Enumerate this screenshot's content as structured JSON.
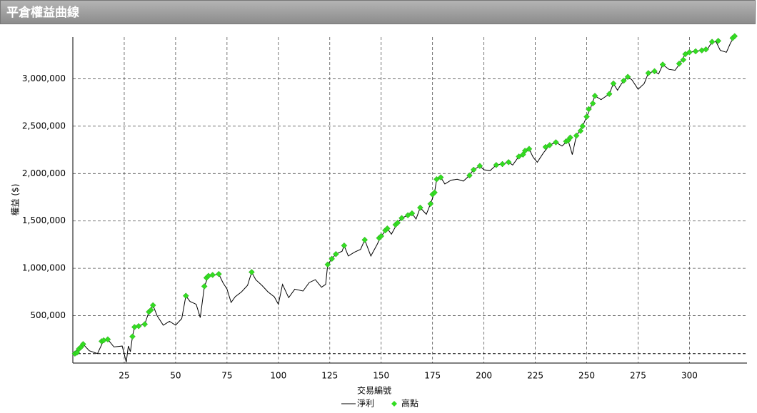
{
  "chart_data": {
    "type": "line",
    "title": "平倉權益曲線",
    "x_label": "交易編號",
    "y_label": "權益 ($)",
    "xlim": [
      0,
      328
    ],
    "xticks": [
      25,
      50,
      75,
      100,
      125,
      150,
      175,
      200,
      225,
      250,
      275,
      300
    ],
    "ylim": [
      0,
      3440000
    ],
    "yticks": [
      {
        "value": 500000,
        "label": "500,000"
      },
      {
        "value": 1000000,
        "label": "1,000,000"
      },
      {
        "value": 1500000,
        "label": "1,500,000"
      },
      {
        "value": 2000000,
        "label": "2,000,000"
      },
      {
        "value": 2500000,
        "label": "2,500,000"
      },
      {
        "value": 3000000,
        "label": "3,000,000"
      }
    ],
    "grid": true,
    "reference_line": 100000,
    "series": [
      {
        "name": "淨利",
        "color": "#000000",
        "x": [
          0,
          5,
          8,
          12,
          15,
          17,
          20,
          24,
          26,
          27,
          28,
          29,
          30,
          33,
          35,
          37,
          39,
          41,
          44,
          47,
          50,
          53,
          55,
          57,
          60,
          62,
          64,
          66,
          69,
          71,
          73,
          75,
          77,
          79,
          82,
          85,
          87,
          89,
          92,
          95,
          98,
          100,
          102,
          105,
          108,
          112,
          115,
          118,
          121,
          123,
          124,
          126,
          128,
          131,
          132,
          134,
          137,
          140,
          142,
          145,
          148,
          150,
          153,
          155,
          158,
          160,
          163,
          165,
          167,
          169,
          172,
          174,
          176,
          177,
          179,
          181,
          184,
          187,
          190,
          192,
          195,
          198,
          200,
          203,
          206,
          209,
          212,
          214,
          217,
          219,
          222,
          224,
          226,
          229,
          232,
          235,
          238,
          241,
          243,
          245,
          248,
          250,
          252,
          254,
          257,
          261,
          263,
          265,
          267,
          270,
          272,
          275,
          278,
          280,
          283,
          285,
          287,
          290,
          293,
          295,
          298,
          300,
          303,
          306,
          309,
          311,
          313,
          315,
          318,
          320,
          322
        ],
        "values": [
          100000,
          200000,
          130000,
          100000,
          240000,
          250000,
          170000,
          180000,
          10000,
          180000,
          120000,
          280000,
          380000,
          400000,
          410000,
          540000,
          610000,
          500000,
          400000,
          440000,
          400000,
          470000,
          710000,
          650000,
          620000,
          480000,
          810000,
          920000,
          930000,
          940000,
          850000,
          780000,
          640000,
          700000,
          750000,
          820000,
          960000,
          880000,
          820000,
          750000,
          700000,
          620000,
          830000,
          690000,
          780000,
          760000,
          850000,
          880000,
          800000,
          830000,
          1040000,
          1100000,
          1150000,
          1180000,
          1240000,
          1130000,
          1170000,
          1200000,
          1300000,
          1130000,
          1250000,
          1340000,
          1420000,
          1360000,
          1480000,
          1530000,
          1560000,
          1580000,
          1520000,
          1640000,
          1570000,
          1680000,
          1800000,
          1940000,
          1960000,
          1890000,
          1930000,
          1940000,
          1920000,
          1960000,
          2040000,
          2080000,
          2040000,
          2030000,
          2090000,
          2100000,
          2120000,
          2090000,
          2180000,
          2200000,
          2260000,
          2170000,
          2120000,
          2220000,
          2300000,
          2330000,
          2290000,
          2350000,
          2200000,
          2400000,
          2500000,
          2600000,
          2700000,
          2820000,
          2780000,
          2840000,
          2950000,
          2880000,
          2950000,
          3020000,
          2990000,
          2890000,
          2950000,
          3060000,
          3080000,
          3050000,
          3150000,
          3100000,
          3090000,
          3150000,
          3260000,
          3280000,
          3290000,
          3300000,
          3320000,
          3390000,
          3390000,
          3300000,
          3280000,
          3380000,
          3450000
        ]
      },
      {
        "name": "高點",
        "color": "#33dd22",
        "marker": "diamond",
        "x": [
          1,
          2,
          3,
          4,
          5,
          14,
          15,
          17,
          29,
          30,
          32,
          35,
          37,
          38,
          39,
          55,
          64,
          65,
          66,
          68,
          71,
          87,
          124,
          126,
          128,
          132,
          142,
          149,
          150,
          152,
          153,
          157,
          158,
          160,
          163,
          165,
          169,
          174,
          175,
          176,
          177,
          179,
          193,
          195,
          198,
          206,
          209,
          212,
          217,
          219,
          220,
          222,
          230,
          232,
          235,
          240,
          241,
          242,
          245,
          247,
          248,
          250,
          251,
          253,
          254,
          261,
          263,
          268,
          270,
          280,
          283,
          287,
          295,
          297,
          298,
          300,
          303,
          306,
          308,
          311,
          314,
          321,
          322
        ],
        "values": [
          100000,
          110000,
          150000,
          170000,
          200000,
          230000,
          240000,
          250000,
          280000,
          380000,
          390000,
          410000,
          540000,
          560000,
          610000,
          710000,
          810000,
          900000,
          920000,
          930000,
          940000,
          960000,
          1040000,
          1100000,
          1150000,
          1240000,
          1300000,
          1320000,
          1340000,
          1400000,
          1420000,
          1460000,
          1480000,
          1530000,
          1560000,
          1580000,
          1640000,
          1680000,
          1780000,
          1800000,
          1940000,
          1960000,
          1980000,
          2040000,
          2080000,
          2090000,
          2100000,
          2120000,
          2180000,
          2200000,
          2240000,
          2260000,
          2280000,
          2300000,
          2330000,
          2340000,
          2350000,
          2380000,
          2400000,
          2450000,
          2500000,
          2600000,
          2680000,
          2740000,
          2820000,
          2840000,
          2950000,
          2980000,
          3020000,
          3060000,
          3080000,
          3150000,
          3160000,
          3200000,
          3260000,
          3280000,
          3290000,
          3300000,
          3310000,
          3390000,
          3400000,
          3430000,
          3450000
        ]
      }
    ]
  }
}
